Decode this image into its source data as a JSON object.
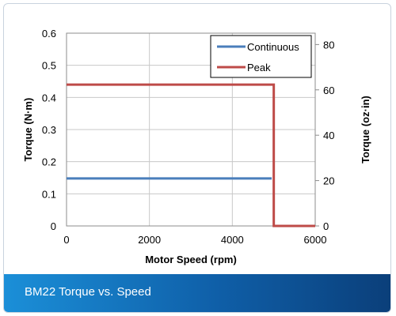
{
  "caption": "BM22 Torque vs. Speed",
  "chart_data": {
    "type": "line",
    "title": "",
    "xlabel": "Motor Speed (rpm)",
    "ylabel": "Torque (N·m)",
    "y2label": "Torque (oz·in)",
    "xlim": [
      0,
      6000
    ],
    "ylim": [
      0,
      0.6
    ],
    "y2lim": [
      0,
      85
    ],
    "x_ticks": [
      "0",
      "2000",
      "4000",
      "6000"
    ],
    "y_ticks": [
      "0",
      "0.1",
      "0.2",
      "0.3",
      "0.4",
      "0.5",
      "0.6"
    ],
    "y2_ticks": [
      "0",
      "20",
      "40",
      "60",
      "80"
    ],
    "grid": true,
    "legend_position": "top-right",
    "series": [
      {
        "name": "Continuous",
        "color": "#4a7ebb",
        "x": [
          0,
          4950
        ],
        "y": [
          0.148,
          0.148
        ]
      },
      {
        "name": "Peak",
        "color": "#be4b48",
        "x": [
          0,
          5000,
          5000,
          6000
        ],
        "y": [
          0.44,
          0.44,
          0,
          0
        ]
      }
    ]
  }
}
